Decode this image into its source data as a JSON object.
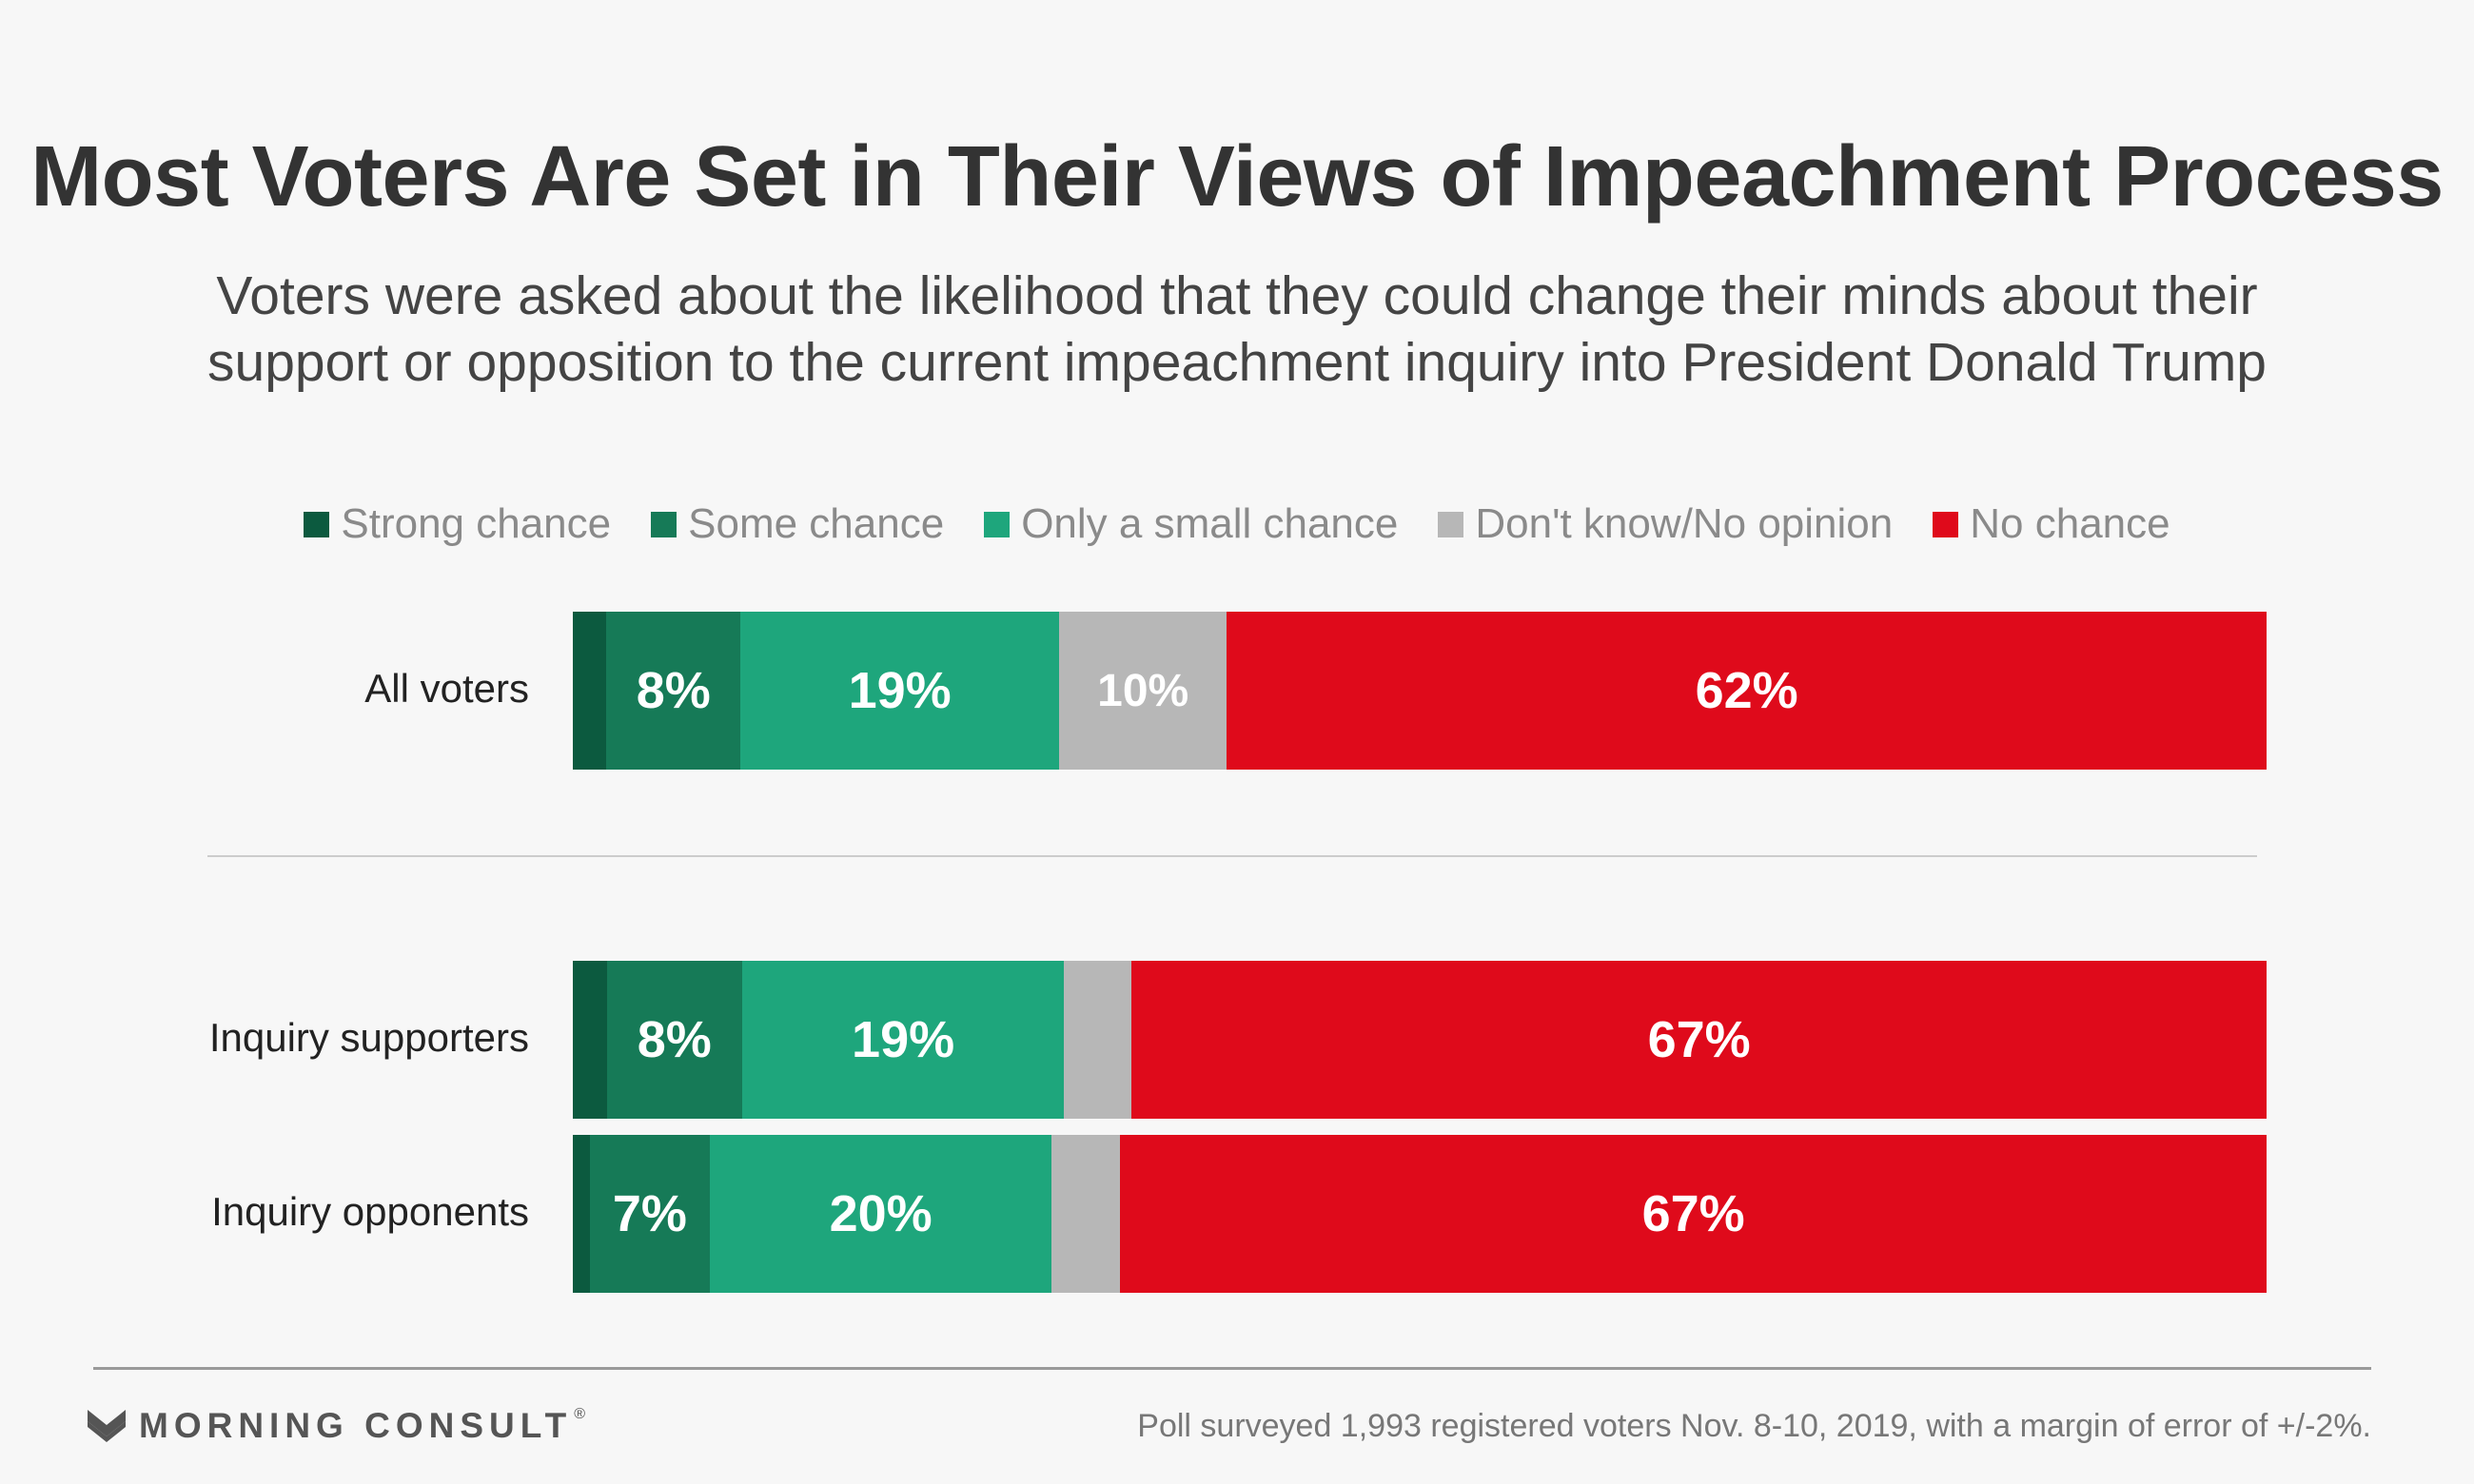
{
  "chart_data": {
    "type": "bar",
    "orientation": "horizontal",
    "stacked": true,
    "title": "Most Voters Are Set in Their Views of Impeachment Process",
    "subtitle": "Voters were asked about the likelihood that they could change their minds about their support or opposition to the current impeachment inquiry into President Donald Trump",
    "categories": [
      "All voters",
      "Inquiry supporters",
      "Inquiry opponents"
    ],
    "legend_position": "top",
    "series": [
      {
        "name": "Strong chance",
        "color": "#0c5a3f",
        "values": [
          2,
          2,
          1
        ]
      },
      {
        "name": "Some chance",
        "color": "#167a57",
        "values": [
          8,
          8,
          7
        ]
      },
      {
        "name": "Only a small chance",
        "color": "#1ea67c",
        "values": [
          19,
          19,
          20
        ]
      },
      {
        "name": "Don't know/No opinion",
        "color": "#b7b7b7",
        "values": [
          10,
          4,
          4
        ]
      },
      {
        "name": "No chance",
        "color": "#df0a1b",
        "values": [
          62,
          67,
          67
        ]
      }
    ],
    "data_labels": [
      [
        "",
        "8%",
        "19%",
        "10%",
        "62%"
      ],
      [
        "",
        "8%",
        "19%",
        "",
        "67%"
      ],
      [
        "",
        "7%",
        "20%",
        "",
        "67%"
      ]
    ]
  },
  "footer": {
    "brand": "MORNING CONSULT",
    "brand_mark": "®",
    "source": "Poll surveyed 1,993 registered voters Nov. 8-10, 2019, with a margin of error of +/-2%.",
    "logo_icon": "morning-consult-logo-icon"
  }
}
